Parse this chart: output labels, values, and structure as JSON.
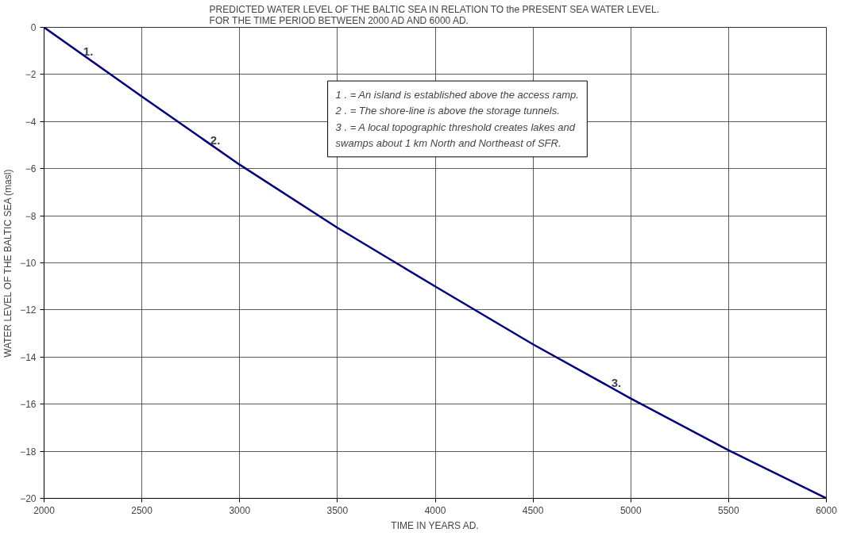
{
  "chart_data": {
    "type": "line",
    "title": "PREDICTED WATER LEVEL OF THE BALTIC SEA IN RELATION TO the PRESENT SEA WATER LEVEL.\nFOR THE TIME PERIOD BETWEEN 2000 AD AND 6000 AD.",
    "xlabel": "TIME IN YEARS AD.",
    "ylabel": "WATER LEVEL OF THE BALTIC SEA (masl)",
    "x": [
      2000,
      2500,
      3000,
      3500,
      4000,
      4500,
      5000,
      5500,
      6000
    ],
    "series": [
      {
        "color": "#000080",
        "values": [
          0,
          -2.94,
          -5.83,
          -8.51,
          -11.0,
          -13.46,
          -15.76,
          -17.96,
          -20.0
        ]
      }
    ],
    "xlim": [
      2000,
      6000
    ],
    "ylim": [
      -20,
      0
    ],
    "xticks": [
      2000,
      2500,
      3000,
      3500,
      4000,
      4500,
      5000,
      5500,
      6000
    ],
    "yticks": [
      -20,
      -18,
      -16,
      -14,
      -12,
      -10,
      -8,
      -6,
      -4,
      -2,
      0
    ],
    "grid": true,
    "marker": "none",
    "line_style": "solid",
    "annotations": [
      {
        "text": "1.",
        "x": 2250,
        "y": -1.47
      },
      {
        "text": "2.",
        "x": 2900,
        "y": -5.25
      },
      {
        "text": "3.",
        "x": 4950,
        "y": -15.53
      },
      "1 . = An island is established above the access ramp.",
      "2 . = The shore-line is above the storage tunnels.",
      "3 . = A local topographic threshold creates lakes and\n      swamps about 1 km North and Northeast of SFR."
    ]
  }
}
